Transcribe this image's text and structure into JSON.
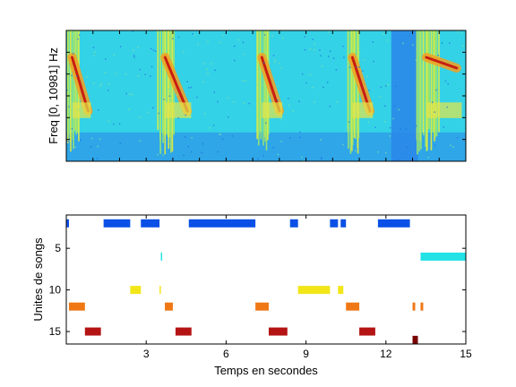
{
  "chart_data": [
    {
      "type": "heatmap",
      "title": "",
      "xlabel": "",
      "ylabel": "Freq [0, 10981] Hz",
      "xlim": [
        0,
        15
      ],
      "colormap": "jet",
      "grid": false,
      "yticks_labeled": false,
      "xticks_labeled": false,
      "song_bursts_seconds": [
        [
          0.0,
          1.0
        ],
        [
          3.4,
          4.8
        ],
        [
          7.1,
          8.2
        ],
        [
          10.5,
          11.6
        ],
        [
          13.1,
          15.0
        ]
      ],
      "noise_column_seconds": [
        12.2,
        13.2
      ]
    },
    {
      "type": "scatter",
      "title": "",
      "xlabel": "Temps en secondes",
      "ylabel": "Unites de songs",
      "xlim": [
        0,
        15
      ],
      "ylim": [
        1,
        16.5
      ],
      "y_reversed": true,
      "xticks": [
        3,
        6,
        9,
        12,
        15
      ],
      "yticks": [
        5,
        10,
        15
      ],
      "grid": false,
      "series": [
        {
          "color": "#0a50e6",
          "values": [
            {
              "x0": 0.0,
              "x1": 0.1,
              "y": 2
            },
            {
              "x0": 1.4,
              "x1": 2.4,
              "y": 2
            },
            {
              "x0": 2.8,
              "x1": 3.5,
              "y": 2
            },
            {
              "x0": 4.6,
              "x1": 7.1,
              "y": 2
            },
            {
              "x0": 8.4,
              "x1": 8.7,
              "y": 2
            },
            {
              "x0": 9.9,
              "x1": 10.2,
              "y": 2
            },
            {
              "x0": 10.3,
              "x1": 10.5,
              "y": 2
            },
            {
              "x0": 11.7,
              "x1": 12.9,
              "y": 2
            }
          ]
        },
        {
          "color": "#22e2e6",
          "values": [
            {
              "x0": 3.55,
              "x1": 3.6,
              "y": 6
            },
            {
              "x0": 13.3,
              "x1": 15.0,
              "y": 6
            }
          ]
        },
        {
          "color": "#f2e619",
          "values": [
            {
              "x0": 2.4,
              "x1": 2.8,
              "y": 10
            },
            {
              "x0": 3.5,
              "x1": 3.55,
              "y": 10
            },
            {
              "x0": 8.7,
              "x1": 9.9,
              "y": 10
            },
            {
              "x0": 10.2,
              "x1": 10.4,
              "y": 10
            }
          ]
        },
        {
          "color": "#f07814",
          "values": [
            {
              "x0": 0.1,
              "x1": 0.7,
              "y": 12
            },
            {
              "x0": 3.7,
              "x1": 4.0,
              "y": 12
            },
            {
              "x0": 7.1,
              "x1": 7.6,
              "y": 12
            },
            {
              "x0": 10.5,
              "x1": 11.0,
              "y": 12
            },
            {
              "x0": 13.0,
              "x1": 13.1,
              "y": 12
            },
            {
              "x0": 13.3,
              "x1": 13.4,
              "y": 12
            }
          ]
        },
        {
          "color": "#b41414",
          "values": [
            {
              "x0": 0.7,
              "x1": 1.3,
              "y": 15
            },
            {
              "x0": 4.1,
              "x1": 4.7,
              "y": 15
            },
            {
              "x0": 7.6,
              "x1": 8.3,
              "y": 15
            },
            {
              "x0": 11.0,
              "x1": 11.6,
              "y": 15
            }
          ]
        },
        {
          "color": "#7a0000",
          "values": [
            {
              "x0": 13.0,
              "x1": 13.2,
              "y": 16
            }
          ]
        }
      ]
    }
  ]
}
